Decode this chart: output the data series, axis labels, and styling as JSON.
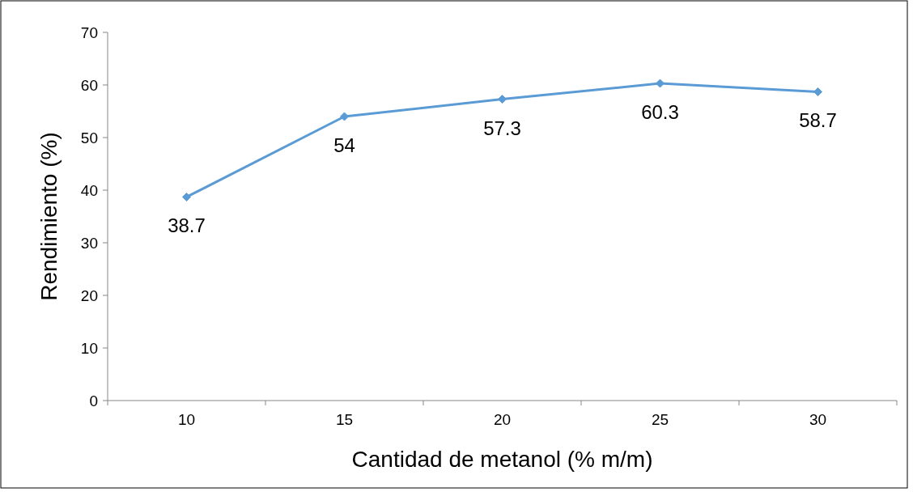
{
  "chart_data": {
    "type": "line",
    "xlabel": "Cantidad de metanol (% m/m)",
    "ylabel": "Rendimiento (%)",
    "categories": [
      "10",
      "15",
      "20",
      "25",
      "30"
    ],
    "series": [
      {
        "color": "#5b9bd5",
        "values": [
          38.7,
          54,
          57.3,
          60.3,
          58.7
        ]
      }
    ],
    "ylim": [
      0,
      70
    ],
    "yticks": [
      0,
      10,
      20,
      30,
      40,
      50,
      60,
      70
    ],
    "grid": false,
    "marker": "diamond",
    "line_style": "solid",
    "data_labels": true
  }
}
